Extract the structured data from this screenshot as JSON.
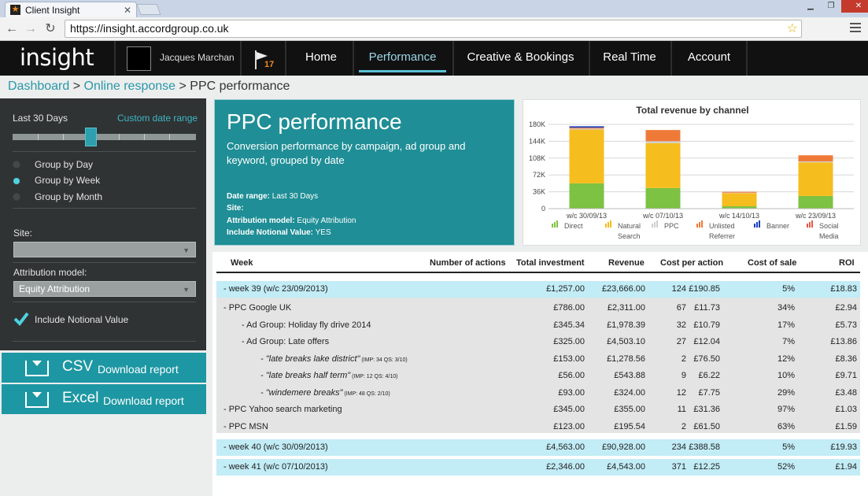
{
  "browser": {
    "tab_title": "Client Insight",
    "tab_close": "✕",
    "url": "https://insight.accordgroup.co.uk",
    "window_controls": [
      "▁",
      "❐",
      "✕"
    ]
  },
  "header": {
    "logo": "insight",
    "user_name": "Jacques Marchan",
    "notification_count": "17",
    "nav": [
      "Home",
      "Performance",
      "Creative & Bookings",
      "Real Time",
      "Account"
    ],
    "active_nav": "Performance"
  },
  "breadcrumb": {
    "items": [
      "Dashboard",
      "Online response"
    ],
    "sep": " > ",
    "current": "PPC performance"
  },
  "sidebar": {
    "range_label": "Last 30 Days",
    "custom_range": "Custom date range",
    "slider_position": 0.45,
    "group_options": [
      "Group by Day",
      "Group by Week",
      "Group by Month"
    ],
    "group_selected": "Group by Week",
    "site_label": "Site:",
    "site_value": "",
    "attribution_label": "Attribution model:",
    "attribution_value": "Equity Attribution",
    "notional_label": "Include Notional Value",
    "notional_checked": true,
    "csv_format": "CSV",
    "csv_text": "Download report",
    "excel_format": "Excel",
    "excel_text": "Download report"
  },
  "hero": {
    "title": "PPC performance",
    "description": "Conversion performance by campaign, ad group and keyword, grouped by date",
    "meta": [
      {
        "label": "Date range:",
        "value": " Last 30 Days"
      },
      {
        "label": "Site:",
        "value": ""
      },
      {
        "label": "Attribution model:",
        "value": " Equity Attribution"
      },
      {
        "label": "Include Notional Value:",
        "value": " YES"
      }
    ]
  },
  "chart_data": {
    "type": "bar",
    "stacked": true,
    "title": "Total revenue by channel",
    "categories": [
      "w/c 30/09/13",
      "w/c 07/10/13",
      "w/c 14/10/13",
      "w/c 23/09/13"
    ],
    "ylim": [
      0,
      180000
    ],
    "yticks": [
      "0",
      "36K",
      "72K",
      "108K",
      "144K",
      "180K"
    ],
    "grid": true,
    "legend_position": "bottom",
    "series": [
      {
        "name": "Direct",
        "color": "#7dc242",
        "values": [
          54000,
          44000,
          5000,
          27000
        ]
      },
      {
        "name": "Natural Search",
        "color": "#f5bd1e",
        "values": [
          115000,
          96000,
          28000,
          72000
        ]
      },
      {
        "name": "PPC",
        "color": "#cfcfcf",
        "values": [
          2000,
          4000,
          1000,
          2000
        ]
      },
      {
        "name": "Unlisted Referrer",
        "color": "#ef7a38",
        "values": [
          2000,
          24000,
          2000,
          13000
        ]
      },
      {
        "name": "Banner",
        "color": "#1d3fbd",
        "values": [
          3000,
          0,
          0,
          0
        ]
      },
      {
        "name": "Social Media",
        "color": "#e8574a",
        "values": [
          0,
          0,
          0,
          0
        ]
      }
    ]
  },
  "table": {
    "columns": [
      "Week",
      "Number of actions",
      "Total investment",
      "Revenue",
      "Cost per action",
      "Cost of sale",
      "ROI"
    ],
    "rows": [
      {
        "kind": "week",
        "label": "-  week 39 (w/c 23/09/2013)",
        "actions": "124",
        "investment": "£1,257.00",
        "revenue": "£23,666.00",
        "cpa": "£190.85",
        "cos": "5%",
        "roi": "£18.83"
      },
      {
        "kind": "campaign",
        "label": "-  PPC Google UK",
        "actions": "67",
        "investment": "£786.00",
        "revenue": "£2,311.00",
        "cpa": "£11.73",
        "cos": "34%",
        "roi": "£2.94"
      },
      {
        "kind": "adgroup",
        "label": "-  Ad Group: Holiday fly drive 2014",
        "actions": "32",
        "investment": "£345.34",
        "revenue": "£1,978.39",
        "cpa": "£10.79",
        "cos": "17%",
        "roi": "£5.73"
      },
      {
        "kind": "adgroup",
        "label": "-  Ad Group: Late offers",
        "actions": "27",
        "investment": "£325.00",
        "revenue": "£4,503.10",
        "cpa": "£12.04",
        "cos": "7%",
        "roi": "£13.86"
      },
      {
        "kind": "keyword",
        "label": "-  \"late breaks lake district\"",
        "meta": "(IMP: 34  QS: 3/10)",
        "actions": "2",
        "investment": "£153.00",
        "revenue": "£1,278.56",
        "cpa": "£76.50",
        "cos": "12%",
        "roi": "£8.36"
      },
      {
        "kind": "keyword",
        "label": "-  \"late breaks half term\"",
        "meta": "(IMP: 12  QS: 4/10)",
        "actions": "9",
        "investment": "£56.00",
        "revenue": "£543.88",
        "cpa": "£6.22",
        "cos": "10%",
        "roi": "£9.71"
      },
      {
        "kind": "keyword",
        "label": "-  \"windemere breaks\"",
        "meta": "(IMP: 48  QS: 2/10)",
        "actions": "12",
        "investment": "£93.00",
        "revenue": "£324.00",
        "cpa": "£7.75",
        "cos": "29%",
        "roi": "£3.48"
      },
      {
        "kind": "campaign",
        "label": "-  PPC Yahoo search marketing",
        "actions": "11",
        "investment": "£345.00",
        "revenue": "£355.00",
        "cpa": "£31.36",
        "cos": "97%",
        "roi": "£1.03"
      },
      {
        "kind": "campaign",
        "label": "-  PPC MSN",
        "actions": "2",
        "investment": "£123.00",
        "revenue": "£195.54",
        "cpa": "£61.50",
        "cos": "63%",
        "roi": "£1.59"
      },
      {
        "kind": "week",
        "label": "-  week 40 (w/c 30/09/2013)",
        "actions": "234",
        "investment": "£4,563.00",
        "revenue": "£90,928.00",
        "cpa": "£388.58",
        "cos": "5%",
        "roi": "£19.93"
      },
      {
        "kind": "week",
        "label": "-  week 41 (w/c 07/10/2013)",
        "actions": "371",
        "investment": "£2,346.00",
        "revenue": "£4,543.00",
        "cpa": "£12.25",
        "cos": "52%",
        "roi": "£1.94"
      }
    ]
  },
  "colors": {
    "accent": "#1d97a3",
    "week_row": "#c2ecf6",
    "sidebar_bg": "#2f3333"
  }
}
